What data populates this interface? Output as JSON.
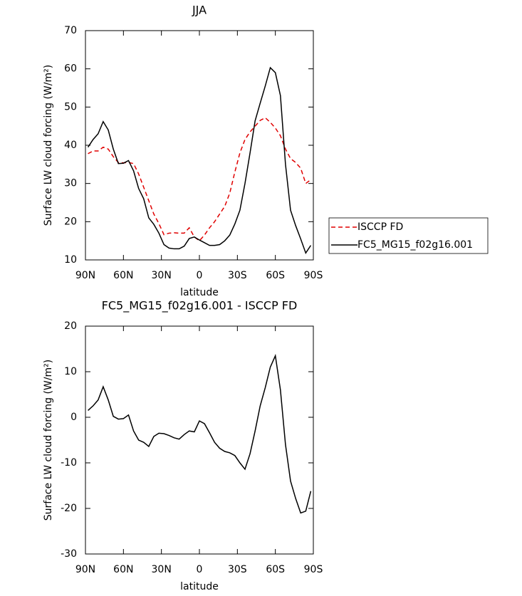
{
  "chart_data": [
    {
      "type": "line",
      "title": "JJA",
      "xlabel": "latitude",
      "ylabel": "Surface LW cloud forcing (W/m²)",
      "x": [
        88,
        84,
        80,
        76,
        72,
        68,
        64,
        60,
        56,
        52,
        48,
        44,
        40,
        36,
        32,
        28,
        24,
        20,
        16,
        12,
        8,
        4,
        0,
        -4,
        -8,
        -12,
        -16,
        -20,
        -24,
        -28,
        -32,
        -36,
        -40,
        -44,
        -48,
        -52,
        -56,
        -60,
        -64,
        -68,
        -72,
        -76,
        -80,
        -84,
        -88
      ],
      "series": [
        {
          "name": "ISCCP FD",
          "color": "#e00000",
          "linestyle": "dashed",
          "values": [
            37.8,
            38.5,
            38.5,
            39.5,
            39,
            37,
            35.5,
            35.4,
            35.5,
            35.2,
            32.5,
            29,
            25.5,
            22,
            19.5,
            16.6,
            17,
            17.1,
            17,
            17,
            18.4,
            16,
            15,
            16.5,
            18.4,
            20,
            22,
            24,
            27.5,
            33,
            38,
            41.5,
            43.5,
            45,
            46.5,
            47.2,
            46,
            44.5,
            42.5,
            39,
            36.5,
            35.5,
            34,
            30,
            31
          ]
        },
        {
          "name": "FC5_MG15_f02g16.001",
          "color": "#000000",
          "linestyle": "solid",
          "values": [
            39.5,
            41.5,
            43,
            46.2,
            44,
            39,
            35.2,
            35.3,
            36,
            33.3,
            28.7,
            26,
            21,
            19.3,
            17,
            14,
            13.1,
            12.9,
            12.9,
            13.6,
            15.6,
            16,
            15.2,
            14.5,
            13.8,
            13.8,
            14,
            15,
            16.5,
            19.4,
            23,
            30,
            38,
            46.4,
            51,
            55.5,
            60.3,
            59,
            53,
            35,
            23,
            19,
            15.5,
            11.8,
            13.8
          ]
        }
      ],
      "xlim": [
        90,
        -90
      ],
      "xticks": [
        {
          "value": 90,
          "label": "90N"
        },
        {
          "value": 60,
          "label": "60N"
        },
        {
          "value": 30,
          "label": "30N"
        },
        0,
        {
          "value": -30,
          "label": "30S"
        },
        {
          "value": -60,
          "label": "60S"
        },
        {
          "value": -90,
          "label": "90S"
        }
      ],
      "ylim": [
        10,
        70
      ],
      "yticks": [
        10,
        20,
        30,
        40,
        50,
        60,
        70
      ],
      "legend": "right"
    },
    {
      "type": "line",
      "title": "FC5_MG15_f02g16.001 - ISCCP FD",
      "xlabel": "latitude",
      "ylabel": "Surface LW cloud forcing (W/m²)",
      "x": [
        88,
        84,
        80,
        76,
        72,
        68,
        64,
        60,
        56,
        52,
        48,
        44,
        40,
        36,
        32,
        28,
        24,
        20,
        16,
        12,
        8,
        4,
        0,
        -4,
        -8,
        -12,
        -16,
        -20,
        -24,
        -28,
        -32,
        -36,
        -40,
        -44,
        -48,
        -52,
        -56,
        -60,
        -64,
        -68,
        -72,
        -76,
        -80,
        -84,
        -88
      ],
      "series": [
        {
          "color": "#000000",
          "linestyle": "solid",
          "values": [
            1.5,
            2.5,
            3.8,
            6.7,
            3.8,
            0.2,
            -0.4,
            -0.3,
            0.5,
            -3,
            -5,
            -5.5,
            -6.4,
            -4.2,
            -3.5,
            -3.6,
            -4,
            -4.5,
            -4.8,
            -3.8,
            -3,
            -3.2,
            -0.8,
            -1.4,
            -3.4,
            -5.5,
            -6.8,
            -7.5,
            -7.8,
            -8.4,
            -10,
            -11.4,
            -8,
            -3,
            2.5,
            6.5,
            11,
            13.5,
            6,
            -6,
            -14,
            -17.8,
            -21,
            -20.6,
            -16.2
          ]
        }
      ],
      "xlim": [
        90,
        -90
      ],
      "xticks": [
        {
          "value": 90,
          "label": "90N"
        },
        {
          "value": 60,
          "label": "60N"
        },
        {
          "value": 30,
          "label": "30N"
        },
        0,
        {
          "value": -30,
          "label": "30S"
        },
        {
          "value": -60,
          "label": "60S"
        },
        {
          "value": -90,
          "label": "90S"
        }
      ],
      "ylim": [
        -30,
        20
      ],
      "yticks": [
        -30,
        -20,
        -10,
        0,
        10,
        20
      ]
    }
  ]
}
